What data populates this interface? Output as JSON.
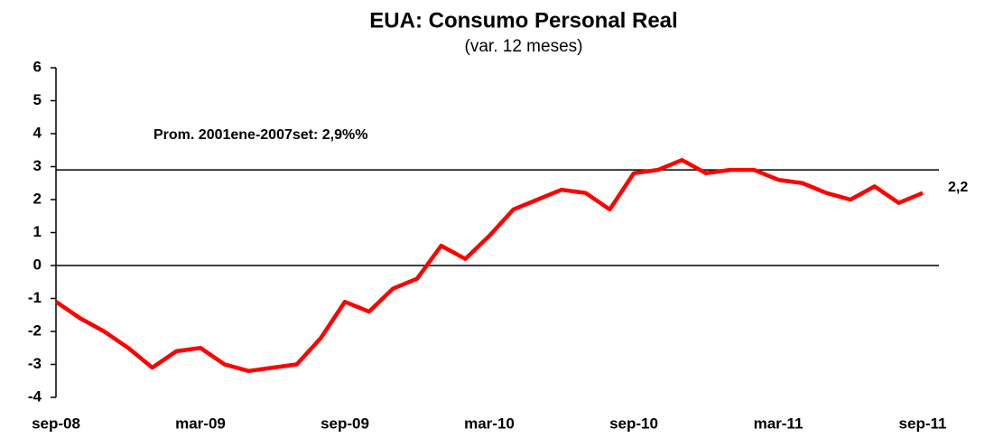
{
  "chart_data": {
    "type": "line",
    "title": "EUA: Consumo Personal Real",
    "subtitle": "(var. 12 meses)",
    "categories": [
      "sep-08",
      null,
      null,
      null,
      null,
      null,
      "mar-09",
      null,
      null,
      null,
      null,
      null,
      "sep-09",
      null,
      null,
      null,
      null,
      null,
      "mar-10",
      null,
      null,
      null,
      null,
      null,
      "sep-10",
      null,
      null,
      null,
      null,
      null,
      "mar-11",
      null,
      null,
      null,
      null,
      null,
      "sep-11"
    ],
    "series": [
      {
        "color": "#ff0000",
        "values": [
          -1.1,
          -1.6,
          -2.0,
          -2.5,
          -3.1,
          -2.6,
          -2.5,
          -3.0,
          -3.2,
          -3.1,
          -3.0,
          -2.2,
          -1.1,
          -1.4,
          -0.7,
          -0.4,
          0.6,
          0.2,
          0.9,
          1.7,
          2.0,
          2.3,
          2.2,
          1.7,
          2.8,
          2.9,
          3.2,
          2.8,
          2.9,
          2.9,
          2.6,
          2.5,
          2.2,
          2.0,
          2.4,
          1.9,
          2.2
        ],
        "value_labels": [
          null,
          null,
          null,
          null,
          null,
          null,
          null,
          null,
          null,
          null,
          null,
          null,
          null,
          null,
          null,
          null,
          null,
          null,
          null,
          null,
          null,
          null,
          null,
          null,
          null,
          null,
          null,
          null,
          null,
          null,
          null,
          null,
          null,
          null,
          null,
          null,
          "2,2"
        ]
      }
    ],
    "hline": {
      "value": 2.9,
      "label": "Prom. 2001ene-2007set: 2,9%%"
    },
    "ylim": [
      -4,
      6
    ],
    "yticks": [
      -4,
      -3,
      -2,
      -1,
      0,
      1,
      2,
      3,
      4,
      5,
      6
    ]
  }
}
